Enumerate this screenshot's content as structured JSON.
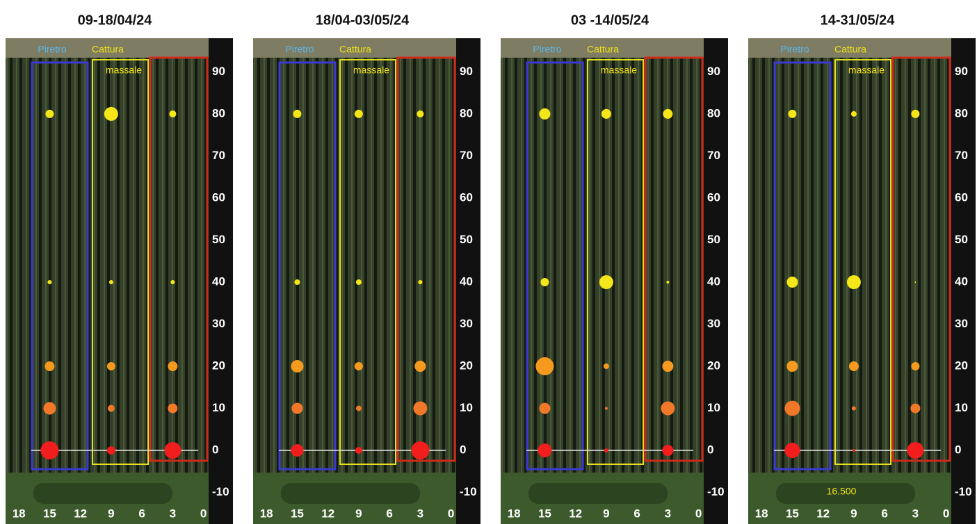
{
  "chart_data": [
    {
      "type": "bubble",
      "title": "09-18/04/24",
      "annotations": [
        {
          "text": "Piretro",
          "color": "#5ab8ee"
        },
        {
          "text": "Cattura",
          "color": "#f2e21a"
        },
        {
          "text": "massale",
          "color": "#f2e21a"
        }
      ],
      "x": [
        15,
        9,
        3
      ],
      "series": [
        {
          "color": "#f5e61a",
          "values": [
            80,
            80,
            80
          ],
          "sizes": [
            6,
            10,
            5
          ]
        },
        {
          "color": "#f5e61a",
          "values": [
            40,
            40,
            40
          ],
          "sizes": [
            3,
            3,
            3
          ]
        },
        {
          "color": "#f59a1f",
          "values": [
            20,
            20,
            20
          ],
          "sizes": [
            7,
            6,
            7
          ]
        },
        {
          "color": "#f07828",
          "values": [
            10,
            10,
            10
          ],
          "sizes": [
            9,
            5,
            7
          ]
        },
        {
          "color": "#f21d1d",
          "values": [
            0,
            0,
            0
          ],
          "sizes": [
            13,
            6,
            12
          ]
        }
      ],
      "xlim": [
        19.3,
        -0.5
      ],
      "xticks": [
        18,
        15,
        12,
        9,
        6,
        3,
        0
      ],
      "ylim": [
        -17.5,
        98
      ],
      "yticks": [
        90,
        80,
        70,
        60,
        50,
        40,
        30,
        20,
        10,
        0,
        -10
      ],
      "reference_line": 0
    },
    {
      "type": "bubble",
      "title": "18/04-03/05/24",
      "annotations": [
        {
          "text": "Piretro",
          "color": "#5ab8ee"
        },
        {
          "text": "Cattura",
          "color": "#f2e21a"
        },
        {
          "text": "massale",
          "color": "#f2e21a"
        }
      ],
      "x": [
        15,
        9,
        3
      ],
      "series": [
        {
          "color": "#f5e61a",
          "values": [
            80,
            80,
            80
          ],
          "sizes": [
            6,
            6,
            5
          ]
        },
        {
          "color": "#f5e61a",
          "values": [
            40,
            40,
            40
          ],
          "sizes": [
            4,
            4,
            3
          ]
        },
        {
          "color": "#f59a1f",
          "values": [
            20,
            20,
            20
          ],
          "sizes": [
            9,
            6,
            8
          ]
        },
        {
          "color": "#f07828",
          "values": [
            10,
            10,
            10
          ],
          "sizes": [
            8,
            4,
            10
          ]
        },
        {
          "color": "#f21d1d",
          "values": [
            0,
            0,
            0
          ],
          "sizes": [
            9,
            5,
            13
          ]
        }
      ],
      "xlim": [
        19.3,
        -0.5
      ],
      "xticks": [
        18,
        15,
        12,
        9,
        6,
        3,
        0
      ],
      "ylim": [
        -17.5,
        98
      ],
      "yticks": [
        90,
        80,
        70,
        60,
        50,
        40,
        30,
        20,
        10,
        0,
        -10
      ],
      "reference_line": 0
    },
    {
      "type": "bubble",
      "title": "03 -14/05/24",
      "annotations": [
        {
          "text": "Piretro",
          "color": "#5ab8ee"
        },
        {
          "text": "Cattura",
          "color": "#f2e21a"
        },
        {
          "text": "massale",
          "color": "#f2e21a"
        }
      ],
      "x": [
        15,
        9,
        3
      ],
      "series": [
        {
          "color": "#f5e61a",
          "values": [
            80,
            80,
            80
          ],
          "sizes": [
            8,
            7,
            7
          ]
        },
        {
          "color": "#f5e61a",
          "values": [
            40,
            40,
            40
          ],
          "sizes": [
            6,
            10,
            2
          ]
        },
        {
          "color": "#f59a1f",
          "values": [
            20,
            20,
            20
          ],
          "sizes": [
            13,
            4,
            8
          ]
        },
        {
          "color": "#f07828",
          "values": [
            10,
            10,
            10
          ],
          "sizes": [
            8,
            2,
            10
          ]
        },
        {
          "color": "#f21d1d",
          "values": [
            0,
            0,
            0
          ],
          "sizes": [
            10,
            3,
            8
          ]
        }
      ],
      "xlim": [
        19.3,
        -0.5
      ],
      "xticks": [
        18,
        15,
        12,
        9,
        6,
        3,
        0
      ],
      "ylim": [
        -17.5,
        98
      ],
      "yticks": [
        90,
        80,
        70,
        60,
        50,
        40,
        30,
        20,
        10,
        0,
        -10
      ],
      "reference_line": 0
    },
    {
      "type": "bubble",
      "title": "14-31/05/24",
      "annotations": [
        {
          "text": "Piretro",
          "color": "#5ab8ee"
        },
        {
          "text": "Cattura",
          "color": "#f2e21a"
        },
        {
          "text": "massale",
          "color": "#f2e21a"
        },
        {
          "text": "16.500",
          "color": "#f2e21a"
        }
      ],
      "x": [
        15,
        9,
        3
      ],
      "series": [
        {
          "color": "#f5e61a",
          "values": [
            80,
            80,
            80
          ],
          "sizes": [
            6,
            4,
            6
          ]
        },
        {
          "color": "#f5e61a",
          "values": [
            40,
            40,
            40
          ],
          "sizes": [
            8,
            10,
            1
          ]
        },
        {
          "color": "#f59a1f",
          "values": [
            20,
            20,
            20
          ],
          "sizes": [
            8,
            7,
            6
          ]
        },
        {
          "color": "#f07828",
          "values": [
            10,
            10,
            10
          ],
          "sizes": [
            11,
            3,
            7
          ]
        },
        {
          "color": "#f21d1d",
          "values": [
            0,
            0,
            0
          ],
          "sizes": [
            11,
            2,
            12
          ]
        }
      ],
      "xlim": [
        19.3,
        -0.5
      ],
      "xticks": [
        18,
        15,
        12,
        9,
        6,
        3,
        0
      ],
      "ylim": [
        -17.5,
        98
      ],
      "yticks": [
        90,
        80,
        70,
        60,
        50,
        40,
        30,
        20,
        10,
        0,
        -10
      ],
      "reference_line": 0
    }
  ]
}
